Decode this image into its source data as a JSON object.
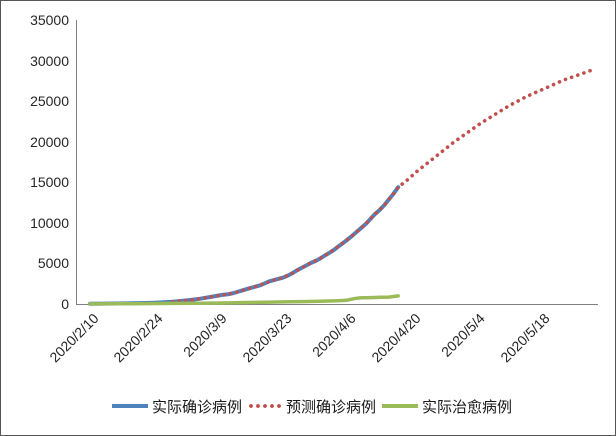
{
  "frame": {
    "background": "#ffffff",
    "border_color": "#555555"
  },
  "chart_data": {
    "type": "line",
    "title": "",
    "xlabel": "",
    "ylabel": "",
    "grid": false,
    "legend_position": "bottom",
    "axis_color": "#808080",
    "tick_label_color": "#262626",
    "y_axis": {
      "range": [
        0,
        35000
      ],
      "ticks": [
        0,
        5000,
        10000,
        15000,
        20000,
        25000,
        30000,
        35000
      ]
    },
    "x_axis": {
      "tick_labels": [
        "2020/2/10",
        "2020/2/24",
        "2020/3/9",
        "2020/3/23",
        "2020/4/6",
        "2020/4/20",
        "2020/5/4",
        "2020/5/18"
      ],
      "tick_days": [
        0,
        14,
        28,
        42,
        56,
        70,
        84,
        98
      ],
      "range_days": [
        0,
        112
      ],
      "label_rotation_deg": -45
    },
    "series": [
      {
        "name": "实际确诊病例",
        "color": "#4F81BD",
        "line_style": "solid",
        "stroke_width": 4,
        "points": [
          [
            0,
            30
          ],
          [
            3,
            45
          ],
          [
            6,
            65
          ],
          [
            9,
            90
          ],
          [
            12,
            125
          ],
          [
            14,
            160
          ],
          [
            16,
            210
          ],
          [
            18,
            280
          ],
          [
            20,
            380
          ],
          [
            22,
            500
          ],
          [
            24,
            650
          ],
          [
            26,
            850
          ],
          [
            28,
            1050
          ],
          [
            29,
            1150
          ],
          [
            30,
            1200
          ],
          [
            31,
            1320
          ],
          [
            32,
            1480
          ],
          [
            33,
            1650
          ],
          [
            34,
            1820
          ],
          [
            35,
            2000
          ],
          [
            36,
            2150
          ],
          [
            37,
            2300
          ],
          [
            38,
            2550
          ],
          [
            39,
            2800
          ],
          [
            40,
            2950
          ],
          [
            41,
            3100
          ],
          [
            42,
            3250
          ],
          [
            43,
            3500
          ],
          [
            44,
            3800
          ],
          [
            45,
            4150
          ],
          [
            46,
            4450
          ],
          [
            47,
            4750
          ],
          [
            48,
            5050
          ],
          [
            49,
            5300
          ],
          [
            50,
            5600
          ],
          [
            51,
            5950
          ],
          [
            52,
            6300
          ],
          [
            53,
            6650
          ],
          [
            54,
            7100
          ],
          [
            55,
            7500
          ],
          [
            56,
            7950
          ],
          [
            57,
            8400
          ],
          [
            58,
            8900
          ],
          [
            59,
            9400
          ],
          [
            60,
            9900
          ],
          [
            61,
            10500
          ],
          [
            62,
            11100
          ],
          [
            63,
            11600
          ],
          [
            64,
            12200
          ],
          [
            65,
            12900
          ],
          [
            66,
            13600
          ],
          [
            67,
            14400
          ]
        ]
      },
      {
        "name": "预测确诊病例",
        "color": "#C0504D",
        "line_style": "dotted",
        "stroke_width": 3.6,
        "points": [
          [
            18,
            280
          ],
          [
            22,
            500
          ],
          [
            26,
            850
          ],
          [
            28,
            1050
          ],
          [
            30,
            1200
          ],
          [
            32,
            1480
          ],
          [
            34,
            1820
          ],
          [
            36,
            2150
          ],
          [
            38,
            2550
          ],
          [
            40,
            2950
          ],
          [
            42,
            3250
          ],
          [
            44,
            3800
          ],
          [
            46,
            4450
          ],
          [
            48,
            5050
          ],
          [
            50,
            5600
          ],
          [
            52,
            6300
          ],
          [
            54,
            7100
          ],
          [
            56,
            7950
          ],
          [
            58,
            8900
          ],
          [
            60,
            9900
          ],
          [
            62,
            11100
          ],
          [
            64,
            12200
          ],
          [
            66,
            13600
          ],
          [
            67,
            14400
          ],
          [
            69,
            15300
          ],
          [
            71,
            16300
          ],
          [
            73,
            17200
          ],
          [
            75,
            18100
          ],
          [
            77,
            19000
          ],
          [
            79,
            19900
          ],
          [
            81,
            20700
          ],
          [
            83,
            21500
          ],
          [
            85,
            22300
          ],
          [
            87,
            23000
          ],
          [
            89,
            23700
          ],
          [
            91,
            24400
          ],
          [
            93,
            25000
          ],
          [
            95,
            25600
          ],
          [
            97,
            26100
          ],
          [
            99,
            26600
          ],
          [
            101,
            27100
          ],
          [
            103,
            27600
          ],
          [
            105,
            28000
          ],
          [
            107,
            28400
          ],
          [
            109,
            28800
          ],
          [
            110,
            29000
          ]
        ]
      },
      {
        "name": "实际治愈病例",
        "color": "#9BBB59",
        "line_style": "solid",
        "stroke_width": 3.5,
        "points": [
          [
            0,
            10
          ],
          [
            6,
            25
          ],
          [
            12,
            45
          ],
          [
            18,
            70
          ],
          [
            24,
            100
          ],
          [
            30,
            140
          ],
          [
            34,
            180
          ],
          [
            38,
            220
          ],
          [
            42,
            260
          ],
          [
            46,
            300
          ],
          [
            50,
            330
          ],
          [
            53,
            380
          ],
          [
            55,
            430
          ],
          [
            56,
            480
          ],
          [
            57,
            600
          ],
          [
            58,
            720
          ],
          [
            59,
            760
          ],
          [
            60,
            780
          ],
          [
            62,
            800
          ],
          [
            63,
            820
          ],
          [
            65,
            850
          ],
          [
            66,
            920
          ],
          [
            67,
            1000
          ]
        ]
      }
    ]
  }
}
